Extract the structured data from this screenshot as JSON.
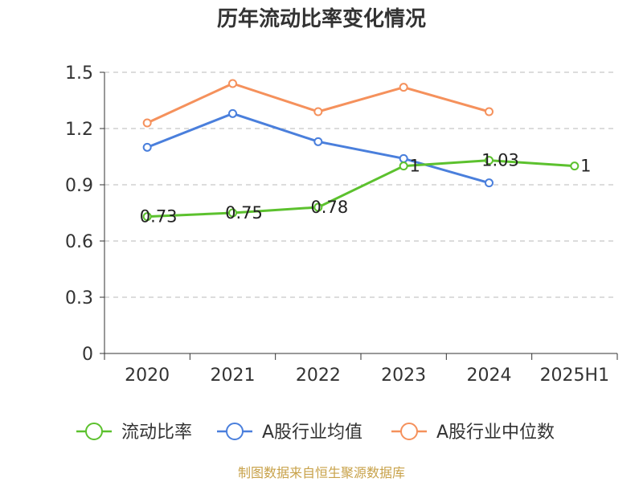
{
  "chart_data": {
    "type": "line",
    "title": "历年流动比率变化情况",
    "categories": [
      "2020",
      "2021",
      "2022",
      "2023",
      "2024",
      "2025H1"
    ],
    "ylim": [
      0,
      1.5
    ],
    "yticks": [
      "0",
      "0.3",
      "0.6",
      "0.9",
      "1.2",
      "1.5"
    ],
    "ytick_values": [
      0,
      0.3,
      0.6,
      0.9,
      1.2,
      1.5
    ],
    "grid": true,
    "legend_position": "bottom",
    "series": [
      {
        "name": "流动比率",
        "color": "#5cc12e",
        "values": [
          0.73,
          0.75,
          0.78,
          1.0,
          1.03,
          1.0
        ],
        "labels": [
          "0.73",
          "0.75",
          "0.78",
          "1",
          "1.03",
          "1"
        ]
      },
      {
        "name": "A股行业均值",
        "color": "#4a7fdc",
        "values": [
          1.1,
          1.28,
          1.13,
          1.04,
          0.91,
          null
        ]
      },
      {
        "name": "A股行业中位数",
        "color": "#f5915c",
        "values": [
          1.23,
          1.44,
          1.29,
          1.42,
          1.29,
          null
        ]
      }
    ]
  },
  "source": "制图数据来自恒生聚源数据库"
}
